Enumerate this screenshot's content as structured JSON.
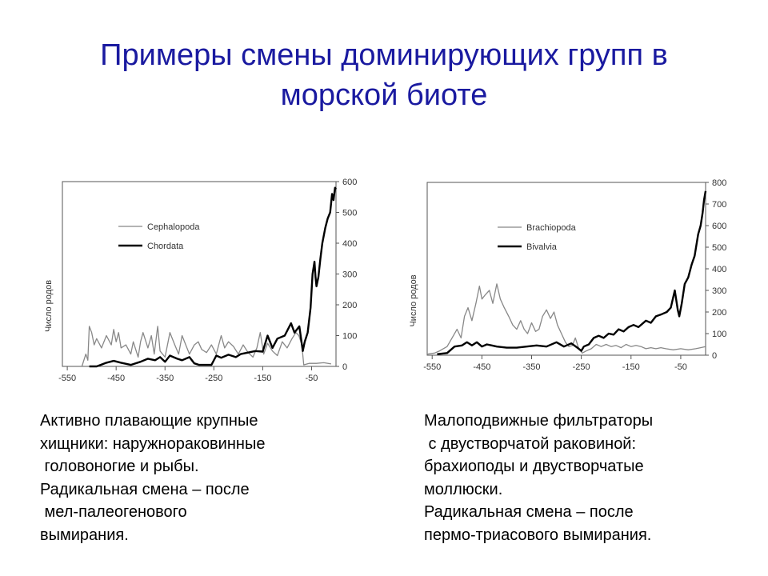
{
  "slide": {
    "title_line1": "Примеры смены доминирующих групп в",
    "title_line2": "морской биоте"
  },
  "chart_data": [
    {
      "type": "line",
      "xlabel": "",
      "ylabel": "Число родов",
      "xlim": [
        -560,
        0
      ],
      "ylim": [
        0,
        600
      ],
      "x_ticks": [
        -550,
        -450,
        -350,
        -250,
        -150,
        -50
      ],
      "x_tick_labels": [
        "-550",
        "-450",
        "-350",
        "-250",
        "-150",
        "-50"
      ],
      "y_ticks": [
        0,
        100,
        200,
        300,
        400,
        500,
        600
      ],
      "y_tick_labels": [
        "0",
        "100",
        "200",
        "300",
        "400",
        "500",
        "600"
      ],
      "legend_position": "top-left",
      "series": [
        {
          "name": "Cephalopoda",
          "color": "#888888",
          "points": [
            [
              -520,
              0
            ],
            [
              -512,
              40
            ],
            [
              -508,
              20
            ],
            [
              -505,
              130
            ],
            [
              -500,
              110
            ],
            [
              -495,
              70
            ],
            [
              -490,
              90
            ],
            [
              -480,
              60
            ],
            [
              -470,
              100
            ],
            [
              -460,
              70
            ],
            [
              -455,
              120
            ],
            [
              -450,
              80
            ],
            [
              -445,
              110
            ],
            [
              -440,
              60
            ],
            [
              -430,
              70
            ],
            [
              -420,
              40
            ],
            [
              -415,
              80
            ],
            [
              -405,
              30
            ],
            [
              -400,
              80
            ],
            [
              -395,
              110
            ],
            [
              -385,
              60
            ],
            [
              -378,
              100
            ],
            [
              -372,
              40
            ],
            [
              -365,
              130
            ],
            [
              -360,
              50
            ],
            [
              -350,
              30
            ],
            [
              -340,
              110
            ],
            [
              -330,
              70
            ],
            [
              -322,
              40
            ],
            [
              -315,
              100
            ],
            [
              -305,
              60
            ],
            [
              -300,
              40
            ],
            [
              -290,
              70
            ],
            [
              -282,
              80
            ],
            [
              -275,
              55
            ],
            [
              -265,
              45
            ],
            [
              -255,
              70
            ],
            [
              -245,
              40
            ],
            [
              -235,
              100
            ],
            [
              -228,
              60
            ],
            [
              -220,
              80
            ],
            [
              -210,
              65
            ],
            [
              -200,
              40
            ],
            [
              -190,
              70
            ],
            [
              -180,
              45
            ],
            [
              -170,
              30
            ],
            [
              -162,
              60
            ],
            [
              -155,
              110
            ],
            [
              -148,
              40
            ],
            [
              -140,
              75
            ],
            [
              -130,
              50
            ],
            [
              -120,
              35
            ],
            [
              -110,
              80
            ],
            [
              -100,
              60
            ],
            [
              -90,
              90
            ],
            [
              -82,
              110
            ],
            [
              -76,
              100
            ],
            [
              -70,
              70
            ],
            [
              -66,
              5
            ],
            [
              -55,
              10
            ],
            [
              -40,
              10
            ],
            [
              -25,
              12
            ],
            [
              -10,
              8
            ]
          ]
        },
        {
          "name": "Chordata",
          "color": "#000000",
          "points": [
            [
              -505,
              0
            ],
            [
              -490,
              0
            ],
            [
              -470,
              12
            ],
            [
              -455,
              18
            ],
            [
              -440,
              12
            ],
            [
              -420,
              5
            ],
            [
              -400,
              15
            ],
            [
              -385,
              25
            ],
            [
              -370,
              20
            ],
            [
              -360,
              30
            ],
            [
              -350,
              15
            ],
            [
              -340,
              35
            ],
            [
              -325,
              25
            ],
            [
              -315,
              20
            ],
            [
              -300,
              30
            ],
            [
              -290,
              10
            ],
            [
              -280,
              5
            ],
            [
              -265,
              5
            ],
            [
              -255,
              5
            ],
            [
              -245,
              35
            ],
            [
              -235,
              28
            ],
            [
              -220,
              38
            ],
            [
              -205,
              30
            ],
            [
              -195,
              40
            ],
            [
              -180,
              45
            ],
            [
              -165,
              50
            ],
            [
              -150,
              48
            ],
            [
              -140,
              100
            ],
            [
              -130,
              60
            ],
            [
              -120,
              90
            ],
            [
              -105,
              100
            ],
            [
              -92,
              140
            ],
            [
              -85,
              110
            ],
            [
              -75,
              130
            ],
            [
              -68,
              50
            ],
            [
              -64,
              80
            ],
            [
              -58,
              110
            ],
            [
              -52,
              190
            ],
            [
              -48,
              300
            ],
            [
              -44,
              340
            ],
            [
              -42,
              290
            ],
            [
              -40,
              260
            ],
            [
              -36,
              290
            ],
            [
              -32,
              350
            ],
            [
              -28,
              400
            ],
            [
              -22,
              450
            ],
            [
              -17,
              480
            ],
            [
              -12,
              500
            ],
            [
              -8,
              560
            ],
            [
              -5,
              540
            ],
            [
              -2,
              580
            ],
            [
              0,
              575
            ]
          ]
        }
      ]
    },
    {
      "type": "line",
      "xlabel": "",
      "ylabel": "Число родов",
      "xlim": [
        -560,
        0
      ],
      "ylim": [
        0,
        800
      ],
      "x_ticks": [
        -550,
        -450,
        -350,
        -250,
        -150,
        -50
      ],
      "x_tick_labels": [
        "-550",
        "-450",
        "-350",
        "-250",
        "-150",
        "-50"
      ],
      "y_ticks": [
        0,
        100,
        200,
        300,
        400,
        500,
        600,
        700,
        800
      ],
      "y_tick_labels": [
        "0",
        "100",
        "200",
        "300",
        "400",
        "500",
        "600",
        "700",
        "800"
      ],
      "legend_position": "top-left",
      "series": [
        {
          "name": "Brachiopoda",
          "color": "#888888",
          "points": [
            [
              -560,
              5
            ],
            [
              -545,
              10
            ],
            [
              -535,
              20
            ],
            [
              -520,
              40
            ],
            [
              -510,
              80
            ],
            [
              -500,
              120
            ],
            [
              -492,
              80
            ],
            [
              -485,
              180
            ],
            [
              -478,
              220
            ],
            [
              -470,
              160
            ],
            [
              -462,
              240
            ],
            [
              -455,
              320
            ],
            [
              -450,
              260
            ],
            [
              -443,
              280
            ],
            [
              -435,
              300
            ],
            [
              -428,
              240
            ],
            [
              -420,
              330
            ],
            [
              -413,
              260
            ],
            [
              -405,
              220
            ],
            [
              -396,
              180
            ],
            [
              -388,
              140
            ],
            [
              -380,
              120
            ],
            [
              -372,
              160
            ],
            [
              -365,
              120
            ],
            [
              -358,
              100
            ],
            [
              -350,
              150
            ],
            [
              -342,
              110
            ],
            [
              -335,
              120
            ],
            [
              -328,
              180
            ],
            [
              -320,
              210
            ],
            [
              -312,
              170
            ],
            [
              -305,
              200
            ],
            [
              -298,
              140
            ],
            [
              -290,
              100
            ],
            [
              -282,
              60
            ],
            [
              -275,
              40
            ],
            [
              -268,
              45
            ],
            [
              -262,
              80
            ],
            [
              -255,
              30
            ],
            [
              -248,
              10
            ],
            [
              -240,
              20
            ],
            [
              -230,
              30
            ],
            [
              -220,
              50
            ],
            [
              -210,
              40
            ],
            [
              -200,
              50
            ],
            [
              -190,
              40
            ],
            [
              -180,
              45
            ],
            [
              -170,
              35
            ],
            [
              -160,
              50
            ],
            [
              -150,
              40
            ],
            [
              -140,
              45
            ],
            [
              -130,
              40
            ],
            [
              -120,
              30
            ],
            [
              -110,
              35
            ],
            [
              -100,
              30
            ],
            [
              -90,
              35
            ],
            [
              -80,
              30
            ],
            [
              -65,
              25
            ],
            [
              -50,
              30
            ],
            [
              -35,
              25
            ],
            [
              -20,
              30
            ],
            [
              -10,
              35
            ],
            [
              0,
              40
            ]
          ]
        },
        {
          "name": "Bivalvia",
          "color": "#000000",
          "points": [
            [
              -540,
              5
            ],
            [
              -520,
              10
            ],
            [
              -505,
              40
            ],
            [
              -490,
              45
            ],
            [
              -480,
              60
            ],
            [
              -470,
              45
            ],
            [
              -460,
              60
            ],
            [
              -450,
              40
            ],
            [
              -440,
              50
            ],
            [
              -430,
              45
            ],
            [
              -420,
              40
            ],
            [
              -400,
              35
            ],
            [
              -380,
              35
            ],
            [
              -360,
              40
            ],
            [
              -340,
              45
            ],
            [
              -320,
              40
            ],
            [
              -300,
              60
            ],
            [
              -285,
              40
            ],
            [
              -270,
              55
            ],
            [
              -258,
              35
            ],
            [
              -250,
              20
            ],
            [
              -245,
              40
            ],
            [
              -235,
              50
            ],
            [
              -225,
              80
            ],
            [
              -215,
              90
            ],
            [
              -205,
              80
            ],
            [
              -195,
              100
            ],
            [
              -185,
              95
            ],
            [
              -175,
              120
            ],
            [
              -165,
              110
            ],
            [
              -155,
              130
            ],
            [
              -145,
              140
            ],
            [
              -135,
              130
            ],
            [
              -120,
              160
            ],
            [
              -110,
              150
            ],
            [
              -100,
              180
            ],
            [
              -88,
              190
            ],
            [
              -78,
              200
            ],
            [
              -70,
              220
            ],
            [
              -62,
              300
            ],
            [
              -56,
              210
            ],
            [
              -53,
              180
            ],
            [
              -48,
              240
            ],
            [
              -42,
              330
            ],
            [
              -35,
              360
            ],
            [
              -28,
              420
            ],
            [
              -22,
              460
            ],
            [
              -15,
              560
            ],
            [
              -10,
              600
            ],
            [
              -6,
              660
            ],
            [
              -3,
              720
            ],
            [
              0,
              760
            ]
          ]
        }
      ]
    }
  ],
  "descriptions": {
    "left": [
      "Активно плавающие крупные",
      "хищники: наружнораковинные",
      " головоногие и рыбы.",
      "Радикальная смена – после",
      " мел-палеогенового",
      "вымирания."
    ],
    "right": [
      "Малоподвижные фильтраторы",
      " с двустворчатой раковиной:",
      "брахиоподы и двустворчатые",
      "моллюски.",
      "Радикальная смена – после",
      "пермо-триасового вымирания."
    ]
  }
}
